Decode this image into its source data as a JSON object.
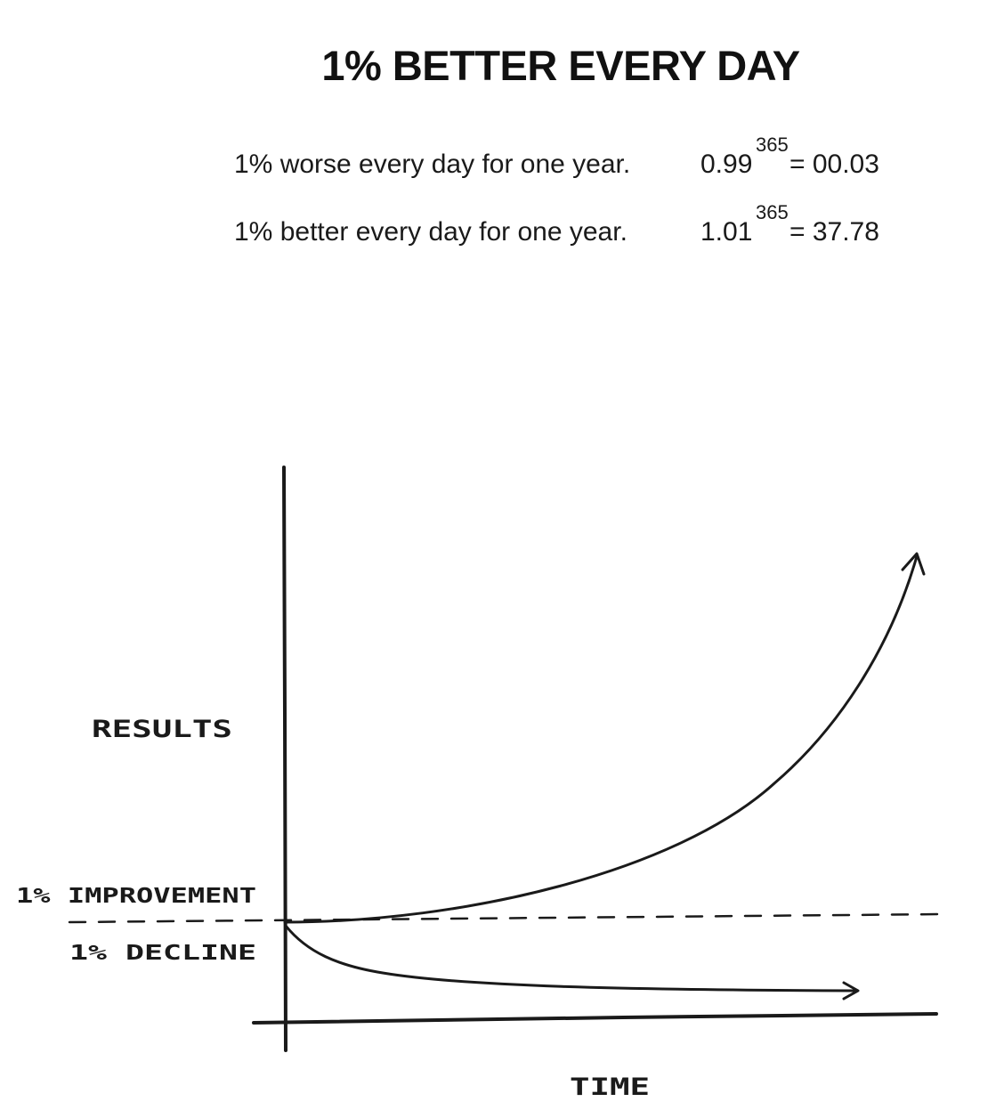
{
  "title": "1% BETTER EVERY DAY",
  "formulas": [
    {
      "label": "1% worse every day for one year.",
      "base": "0.99",
      "exponent": "365",
      "result": "= 00.03"
    },
    {
      "label": "1% better every day for one year.",
      "base": "1.01",
      "exponent": "365",
      "result": "= 37.78"
    }
  ],
  "diagram": {
    "y_axis_label": "RESULTS",
    "x_axis_label": "TIME",
    "baseline_label_above": "1% IMPROVEMENT",
    "baseline_label_below": "1% DECLINE",
    "line_color": "#1a1a1a"
  }
}
